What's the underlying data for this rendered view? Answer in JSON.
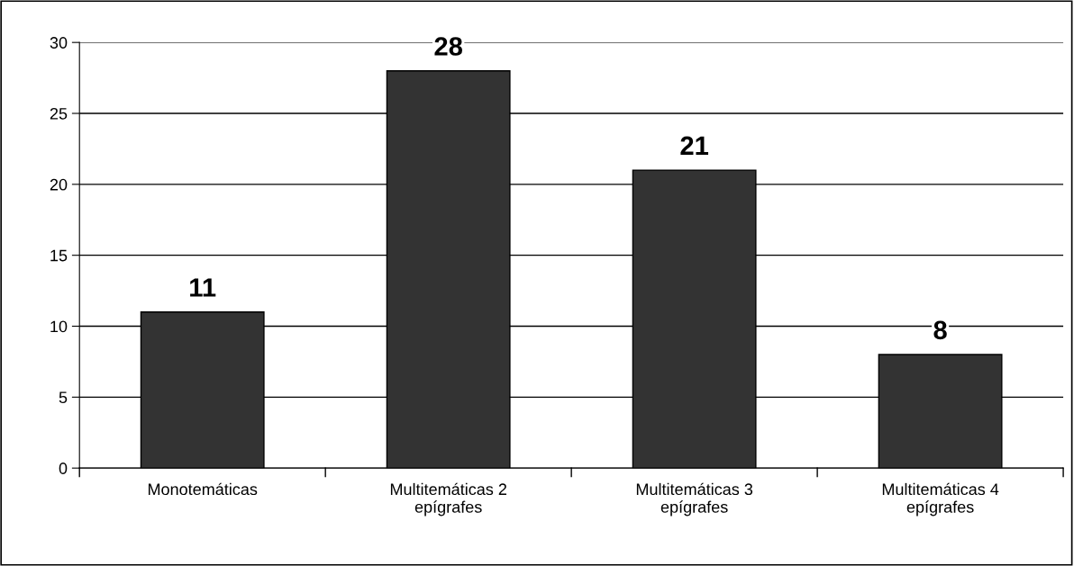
{
  "chart_data": {
    "type": "bar",
    "categories": [
      "Monotemáticas",
      "Multitemáticas 2\nepígrafes",
      "Multitemáticas 3\nepígrafes",
      "Multitemáticas 4\nepígrafes"
    ],
    "values": [
      11,
      28,
      21,
      8
    ],
    "color": "#333333",
    "ylim": [
      0,
      30
    ],
    "yticks": [
      0,
      5,
      10,
      15,
      20,
      25,
      30
    ],
    "grid": "y",
    "data_labels": true
  }
}
